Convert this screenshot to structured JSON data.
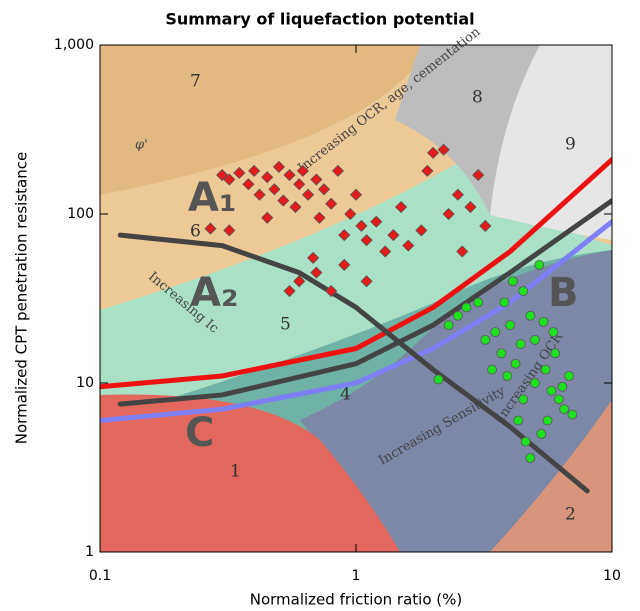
{
  "chart_data": {
    "type": "scatter",
    "title": "Summary of liquefaction potential",
    "x_label": "Normalized friction ratio (%)",
    "y_label": "Normalized CPT penetration resistance",
    "xscale": "log",
    "yscale": "log",
    "xlim": [
      0.1,
      10
    ],
    "ylim": [
      1,
      1000
    ],
    "xticks": [
      0.1,
      1,
      10
    ],
    "yticks": [
      1,
      10,
      100,
      {
        "value": 1000,
        "label": "1,000"
      }
    ],
    "series": [
      {
        "color": "#e21b1b",
        "marker": "diamond",
        "x": [
          0.3,
          0.32,
          0.35,
          0.38,
          0.4,
          0.42,
          0.45,
          0.48,
          0.5,
          0.52,
          0.55,
          0.58,
          0.6,
          0.62,
          0.65,
          0.7,
          0.72,
          0.75,
          0.8,
          0.85,
          0.9,
          0.95,
          1.0,
          1.05,
          1.1,
          1.2,
          1.3,
          1.4,
          1.5,
          1.6,
          1.8,
          2.0,
          2.2,
          2.5,
          2.8,
          3.0,
          3.2,
          2.6,
          0.27,
          0.32,
          0.55,
          0.6,
          0.7,
          0.8,
          0.9,
          1.1,
          0.68,
          2.3,
          1.9,
          0.45
        ],
        "values": [
          170,
          160,
          175,
          150,
          180,
          130,
          165,
          140,
          190,
          120,
          170,
          110,
          150,
          180,
          130,
          160,
          95,
          140,
          115,
          180,
          75,
          100,
          130,
          85,
          70,
          90,
          60,
          75,
          110,
          65,
          80,
          230,
          240,
          130,
          110,
          170,
          85,
          60,
          82,
          80,
          35,
          40,
          45,
          35,
          50,
          40,
          55,
          100,
          180,
          95
        ]
      },
      {
        "color": "#1fe01f",
        "marker": "circle",
        "x": [
          2.3,
          2.5,
          2.7,
          3.0,
          3.2,
          3.5,
          3.7,
          4.0,
          4.2,
          4.5,
          4.8,
          5.0,
          5.2,
          5.5,
          5.8,
          6.0,
          6.2,
          6.5,
          7.0,
          5.0,
          4.5,
          4.3,
          4.6,
          4.8,
          5.3,
          5.6,
          3.8,
          4.1,
          3.4,
          2.1,
          3.9,
          6.8,
          5.9,
          4.4,
          5.4,
          6.4
        ],
        "values": [
          22,
          25,
          28,
          30,
          18,
          20,
          15,
          22,
          13,
          35,
          25,
          18,
          50,
          12,
          9,
          15,
          8,
          7,
          6.5,
          10,
          8,
          6,
          4.5,
          3.6,
          5,
          6,
          30,
          40,
          12,
          10.5,
          11,
          11,
          20,
          17,
          23,
          9.5
        ]
      }
    ],
    "curves": [
      {
        "color": "#ee1111",
        "x": [
          0.1,
          0.3,
          1,
          2,
          4,
          10
        ],
        "values": [
          9.5,
          11,
          16,
          28,
          60,
          210
        ]
      },
      {
        "color": "#7f7ff5",
        "x": [
          0.1,
          0.3,
          1,
          2,
          4,
          10
        ],
        "values": [
          6,
          7,
          10,
          16,
          30,
          90
        ]
      },
      {
        "color": "#444444",
        "x": [
          0.12,
          0.3,
          1,
          2,
          4,
          10
        ],
        "values": [
          7.5,
          8.5,
          13,
          22,
          45,
          120
        ]
      },
      {
        "color": "#444444",
        "x": [
          0.12,
          0.3,
          0.6,
          1,
          2,
          4,
          8
        ],
        "values": [
          75,
          65,
          45,
          28,
          12,
          5.5,
          2.3
        ]
      }
    ],
    "zone_labels": [
      "1",
      "2",
      "4",
      "5",
      "6",
      "7",
      "8",
      "9",
      "A₁",
      "A₂",
      "B",
      "C"
    ],
    "annotations": [
      "Increasing OCR, age, cementation",
      "Increasing Ic",
      "Increasing Sensitivity",
      "Increasing OCR",
      "φ'"
    ]
  }
}
